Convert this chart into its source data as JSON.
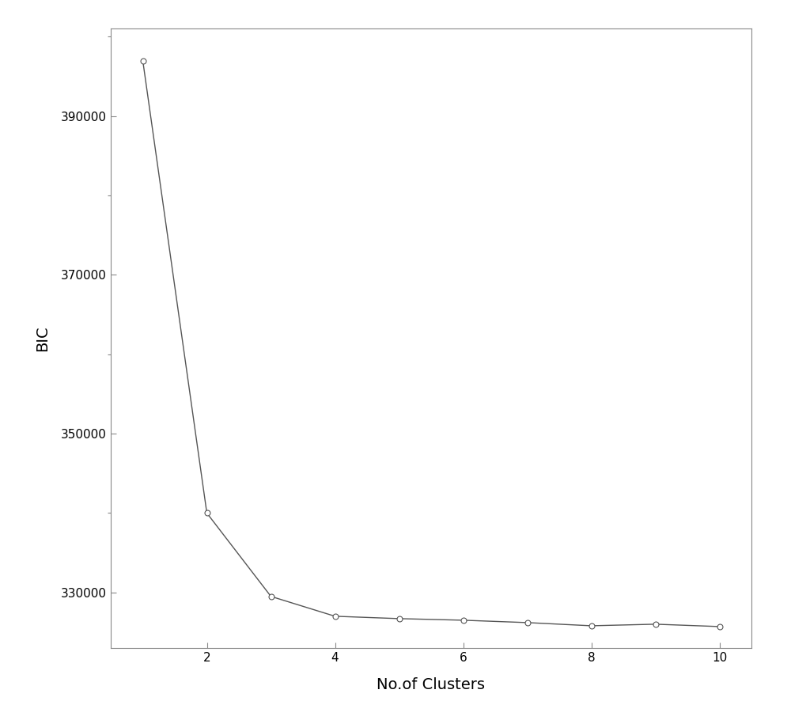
{
  "x": [
    1,
    2,
    3,
    4,
    5,
    6,
    7,
    8,
    9,
    10
  ],
  "y": [
    397000,
    340000,
    329500,
    327000,
    326700,
    326500,
    326200,
    325800,
    326000,
    325700
  ],
  "xlabel": "No.of Clusters",
  "ylabel": "BIC",
  "xlim": [
    0.5,
    10.5
  ],
  "ylim": [
    323000,
    401000
  ],
  "xticks": [
    2,
    4,
    6,
    8,
    10
  ],
  "yticks": [
    330000,
    350000,
    370000,
    390000
  ],
  "line_color": "#555555",
  "marker": "o",
  "marker_facecolor": "white",
  "marker_edgecolor": "#555555",
  "marker_size": 5,
  "line_width": 1.0,
  "background_color": "#ffffff",
  "axes_background": "#ffffff",
  "label_fontsize": 14,
  "tick_fontsize": 11
}
